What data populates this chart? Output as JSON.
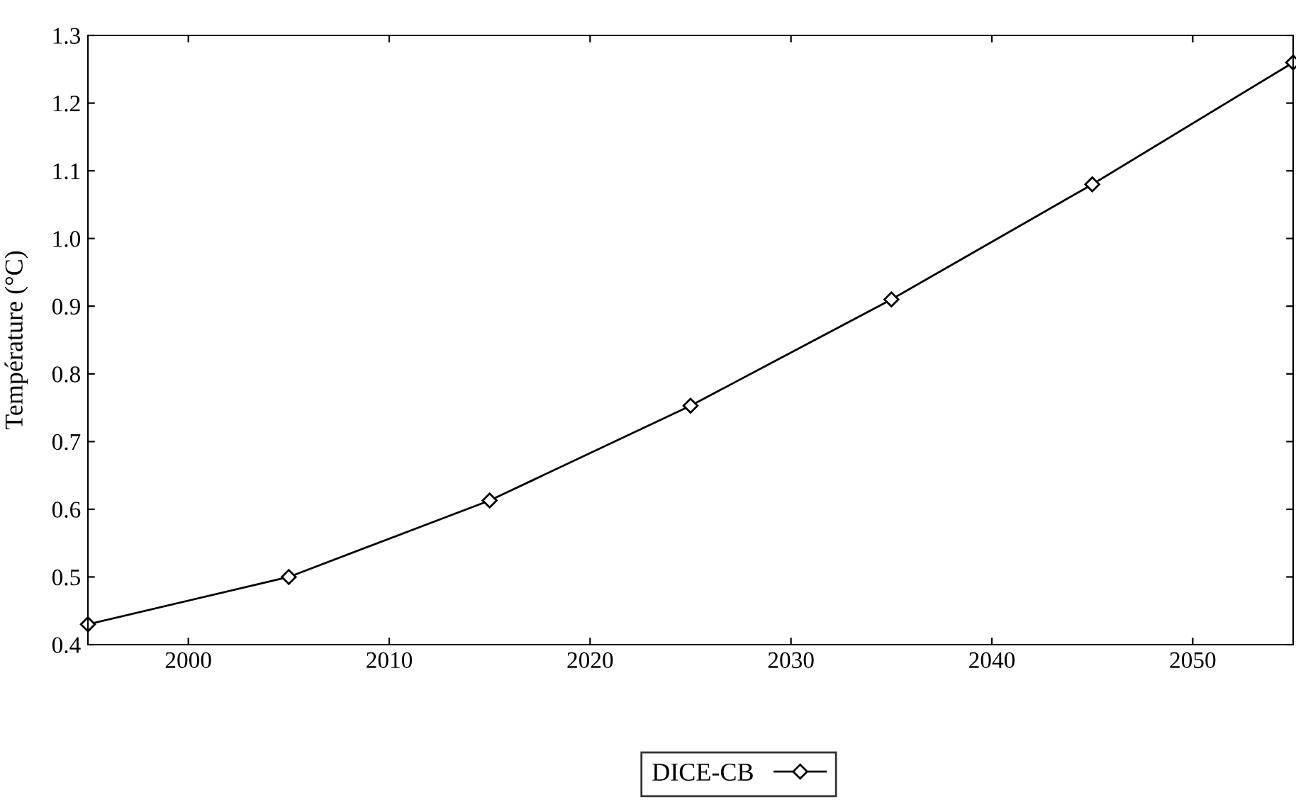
{
  "chart_data": {
    "type": "line",
    "ylabel": "Température (°C)",
    "x": [
      1995,
      2005,
      2015,
      2025,
      2035,
      2045,
      2055
    ],
    "series": [
      {
        "name": "DICE-CB",
        "color": "#000000",
        "values": [
          0.43,
          0.5,
          0.613,
          0.753,
          0.91,
          1.08,
          1.26
        ]
      }
    ],
    "xlim": [
      1995,
      2055
    ],
    "xticks": [
      2000,
      2010,
      2020,
      2030,
      2040,
      2050
    ],
    "ylim": [
      0.4,
      1.3
    ],
    "yticks": [
      0.4,
      0.5,
      0.6,
      0.7,
      0.8,
      0.9,
      {
        "value": 1.0,
        "label": "1.0"
      },
      1.1,
      1.2,
      1.3
    ],
    "marker": "diamond",
    "line_style": "solid",
    "grid": false,
    "legend": "bottom"
  }
}
